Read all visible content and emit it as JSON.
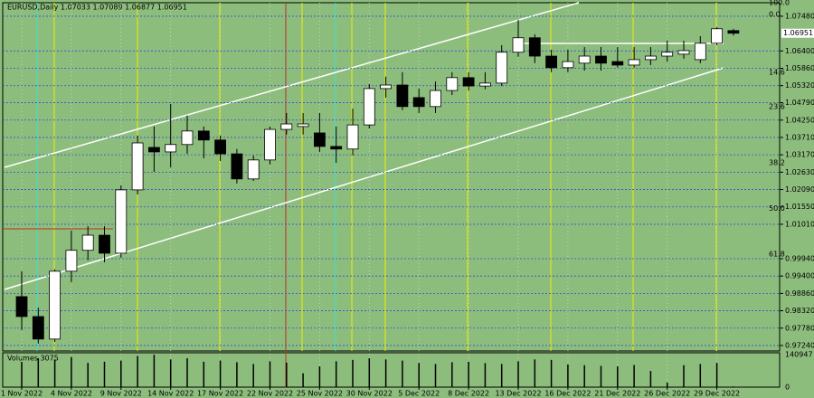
{
  "chart_data": {
    "type": "candlestick",
    "title": "EURUSD,Daily  1.07033 1.07089 1.06877 1.06951",
    "categories": [
      "1 Nov 2022",
      null,
      null,
      "4 Nov 2022",
      null,
      null,
      "9 Nov 2022",
      null,
      null,
      "14 Nov 2022",
      null,
      null,
      "17 Nov 2022",
      null,
      null,
      "22 Nov 2022",
      null,
      null,
      "25 Nov 2022",
      null,
      null,
      "30 Nov 2022",
      null,
      null,
      "5 Dec 2022",
      null,
      null,
      "8 Dec 2022",
      null,
      null,
      "13 Dec 2022",
      null,
      null,
      "16 Dec 2022",
      null,
      null,
      "21 Dec 2022",
      null,
      null,
      "26 Dec 2022",
      null,
      null,
      "29 Dec 2022",
      null
    ],
    "open": [
      0.9876,
      0.9814,
      0.9744,
      0.9955,
      1.002,
      1.0067,
      1.0011,
      1.0208,
      1.034,
      1.0326,
      1.0349,
      1.0391,
      1.0363,
      1.032,
      1.0242,
      1.0301,
      1.0396,
      1.0405,
      1.0385,
      1.0343,
      1.0335,
      1.041,
      1.0523,
      1.0534,
      1.0495,
      1.0467,
      1.0517,
      1.0557,
      1.0531,
      1.054,
      1.0636,
      1.0681,
      1.0624,
      1.0588,
      1.0602,
      1.0624,
      1.0607,
      1.0596,
      1.0613,
      1.0624,
      1.063,
      1.0613,
      1.0664,
      1.07033
    ],
    "high": [
      0.9955,
      0.9842,
      0.9961,
      1.0081,
      1.0095,
      1.0095,
      1.0222,
      1.0377,
      1.0405,
      1.0475,
      1.0439,
      1.0405,
      1.0377,
      1.0335,
      1.0315,
      1.0405,
      1.0447,
      1.0447,
      1.0447,
      1.0405,
      1.0461,
      1.0537,
      1.056,
      1.0574,
      1.0523,
      1.0545,
      1.0574,
      1.0574,
      1.0574,
      1.0658,
      1.0737,
      1.0692,
      1.0644,
      1.0644,
      1.0652,
      1.0652,
      1.0652,
      1.0652,
      1.0652,
      1.0672,
      1.0672,
      1.0686,
      1.0714,
      1.07089
    ],
    "low": [
      0.9772,
      0.973,
      0.9735,
      0.9921,
      0.9989,
      0.9983,
      0.9997,
      1.0194,
      1.0264,
      1.0278,
      1.032,
      1.0306,
      1.0298,
      1.0228,
      1.0236,
      1.0287,
      1.038,
      1.038,
      1.0326,
      1.0292,
      1.0315,
      1.0399,
      1.0495,
      1.0456,
      1.0447,
      1.0447,
      1.0503,
      1.0517,
      1.0521,
      1.0531,
      1.0622,
      1.0602,
      1.0574,
      1.0574,
      1.0579,
      1.0579,
      1.0588,
      1.0588,
      1.0596,
      1.0607,
      1.0616,
      1.0602,
      1.0658,
      1.06877
    ],
    "close": [
      0.9814,
      0.9744,
      0.9955,
      1.002,
      1.0067,
      1.0011,
      1.0208,
      1.0354,
      1.0326,
      1.0349,
      1.0391,
      1.0363,
      1.032,
      1.0242,
      1.0301,
      1.0396,
      1.0413,
      1.0413,
      1.0343,
      1.0335,
      1.041,
      1.0523,
      1.0534,
      1.0467,
      1.0467,
      1.0517,
      1.0557,
      1.0531,
      1.054,
      1.0636,
      1.0681,
      1.0624,
      1.0588,
      1.0607,
      1.0624,
      1.0602,
      1.0596,
      1.0613,
      1.0624,
      1.0636,
      1.0641,
      1.0664,
      1.0709,
      1.06951
    ],
    "volume": [
      110000,
      125000,
      120000,
      130000,
      105000,
      110000,
      115000,
      135000,
      140000,
      120000,
      125000,
      110000,
      115000,
      108000,
      100000,
      112000,
      106000,
      60000,
      90000,
      112000,
      118000,
      125000,
      120000,
      115000,
      105000,
      100000,
      108000,
      110000,
      104000,
      100000,
      112000,
      120000,
      118000,
      98000,
      95000,
      92000,
      90000,
      96000,
      70000,
      20000,
      95000,
      100000,
      105000,
      3075
    ],
    "ylim": [
      0.9707,
      1.079
    ],
    "yticks": [
      {
        "value": 1.0748,
        "label": "1.07480"
      },
      {
        "value": 1.064,
        "label": "1.06400"
      },
      {
        "value": 1.0586,
        "label": "1.05860"
      },
      {
        "value": 1.0532,
        "label": "1.05320"
      },
      {
        "value": 1.0479,
        "label": "1.04790"
      },
      {
        "value": 1.0425,
        "label": "1.04250"
      },
      {
        "value": 1.0371,
        "label": "1.03710"
      },
      {
        "value": 1.0317,
        "label": "1.03170"
      },
      {
        "value": 1.0263,
        "label": "1.02630"
      },
      {
        "value": 1.0209,
        "label": "1.02090"
      },
      {
        "value": 1.0155,
        "label": "1.01550"
      },
      {
        "value": 1.0101,
        "label": "1.01010"
      },
      {
        "value": 0.9994,
        "label": "0.99940"
      },
      {
        "value": 0.994,
        "label": "0.99400"
      },
      {
        "value": 0.9886,
        "label": "0.98860"
      },
      {
        "value": 0.9832,
        "label": "0.98320"
      },
      {
        "value": 0.9778,
        "label": "0.97780"
      },
      {
        "value": 0.9724,
        "label": "0.97240"
      }
    ],
    "price_label": {
      "value": 1.06951,
      "label": "1.06951"
    },
    "fib_levels": [
      {
        "value": 1.0782,
        "label": "100.0"
      },
      {
        "value": 1.0745,
        "label": "0.0"
      },
      {
        "value": 1.0565,
        "label": "14.6"
      },
      {
        "value": 1.0458,
        "label": "23.6"
      },
      {
        "value": 1.0284,
        "label": "38.2"
      },
      {
        "value": 1.0141,
        "label": "50.0"
      },
      {
        "value": 1.0,
        "label": "61.8"
      }
    ],
    "volume_title": "Volumes 3075",
    "volume_ylim": [
      0,
      140947
    ],
    "volume_ticks": [
      140947,
      0
    ],
    "up_color": "#ffffff",
    "down_color": "#000000",
    "background": "#8dbd7d"
  }
}
